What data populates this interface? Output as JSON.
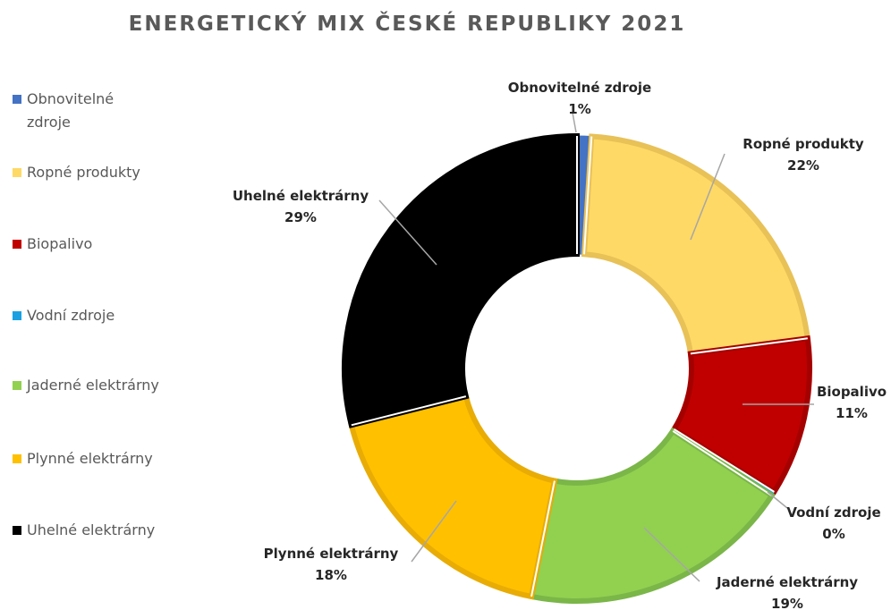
{
  "chart_data": {
    "type": "pie",
    "variant": "donut",
    "title": "ENERGETICKÝ MIX ČESKÉ REPUBLIKY 2021",
    "legend_position": "left",
    "slices": [
      {
        "label": "Obnovitelné zdroje",
        "value": 1,
        "value_label": "1%",
        "color": "#4472C4",
        "border": "#4472C4"
      },
      {
        "label": "Ropné produkty",
        "value": 22,
        "value_label": "22%",
        "color": "#FFD966",
        "border": "#E8C157"
      },
      {
        "label": "Biopalivo",
        "value": 11,
        "value_label": "11%",
        "color": "#C00000",
        "border": "#A50000"
      },
      {
        "label": "Vodní zdroje",
        "value": 0,
        "value_label": "0%",
        "color": "#1BA1E2",
        "border": "#1BA1E2"
      },
      {
        "label": "Jaderné elektrárny",
        "value": 19,
        "value_label": "19%",
        "color": "#92D050",
        "border": "#7AB648"
      },
      {
        "label": "Plynné elektrárny",
        "value": 18,
        "value_label": "18%",
        "color": "#FFC000",
        "border": "#E8AC05"
      },
      {
        "label": "Uhelné elektrárny",
        "value": 29,
        "value_label": "29%",
        "color": "#000000",
        "border": "#000000"
      }
    ]
  }
}
